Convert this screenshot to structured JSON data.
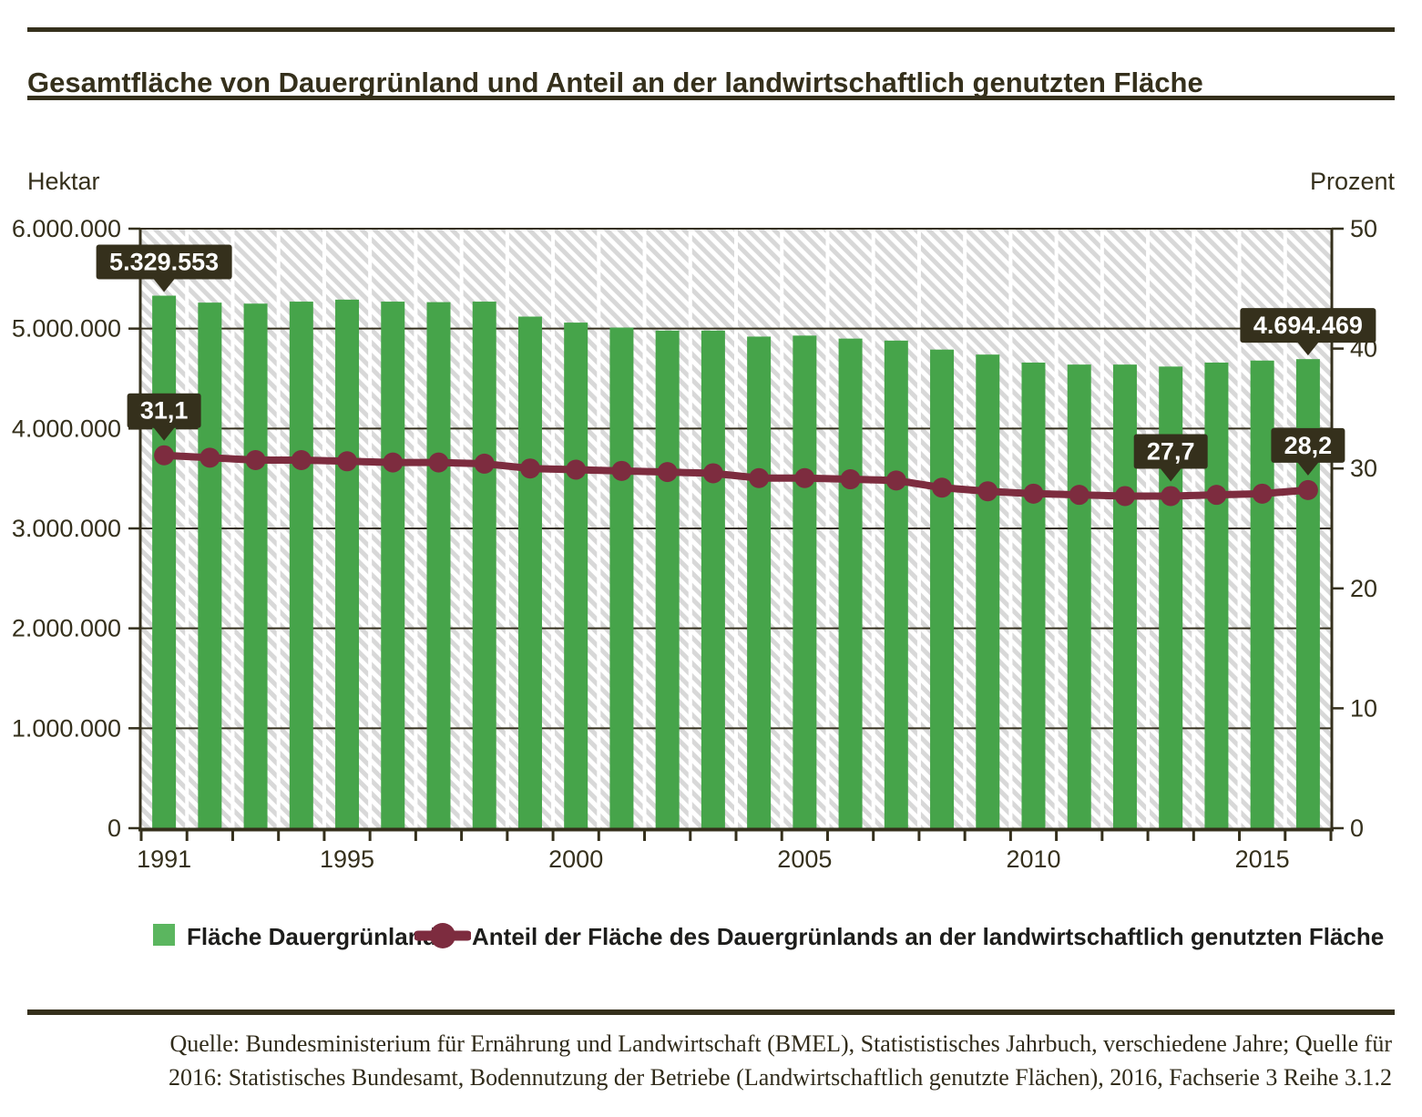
{
  "header": {
    "title": "Gesamtfläche von Dauergrünland und Anteil an der landwirtschaftlich genutzten Fläche"
  },
  "axes": {
    "left_unit": "Hektar",
    "right_unit": "Prozent",
    "left_tick_labels": [
      "0",
      "1.000.000",
      "2.000.000",
      "3.000.000",
      "4.000.000",
      "5.000.000",
      "6.000.000"
    ],
    "right_tick_labels": [
      "0",
      "10",
      "20",
      "30",
      "40",
      "50"
    ],
    "x_tick_labels": [
      {
        "label": "1991",
        "year": 1991
      },
      {
        "label": "1995",
        "year": 1995
      },
      {
        "label": "2000",
        "year": 2000
      },
      {
        "label": "2005",
        "year": 2005
      },
      {
        "label": "2010",
        "year": 2010
      },
      {
        "label": "2015",
        "year": 2015
      }
    ]
  },
  "legend": {
    "items": [
      {
        "label": "Fläche Dauergrünland",
        "marker": "green-square"
      },
      {
        "label": "Anteil der Fläche des Dauergrünlands an der landwirtschaftlich genutzten Fläche",
        "marker": "maroon-line-dot"
      }
    ]
  },
  "source": {
    "line1": "Quelle: Bundesministerium für Ernährung und Landwirtschaft (BMEL), Statististisches Jahrbuch, verschiedene Jahre; Quelle für",
    "line2": "2016: Statistisches Bundesamt, Bodennutzung der Betriebe (Landwirtschaftlich genutzte Flächen), 2016, Fachserie 3 Reihe 3.1.2"
  },
  "colors": {
    "olive": "#35301c",
    "bar_green": "#46a44a",
    "legend_green": "#5bb65f",
    "maroon": "#7d2c3f",
    "hatch_gray": "#d8d8d8",
    "callout_bg": "#35301c",
    "callout_text": "#ffffff"
  },
  "chart_data": {
    "type": "bar+line",
    "categories": [
      1991,
      1992,
      1993,
      1994,
      1995,
      1996,
      1997,
      1998,
      1999,
      2000,
      2001,
      2002,
      2003,
      2004,
      2005,
      2006,
      2007,
      2008,
      2009,
      2010,
      2011,
      2012,
      2013,
      2014,
      2015,
      2016
    ],
    "series": [
      {
        "name": "Fläche Dauergrünland",
        "type": "bar",
        "axis": "left",
        "unit": "Hektar",
        "values": [
          5329553,
          5260000,
          5250000,
          5270000,
          5290000,
          5270000,
          5265000,
          5270000,
          5120000,
          5060000,
          5010000,
          4980000,
          4980000,
          4920000,
          4930000,
          4900000,
          4880000,
          4790000,
          4740000,
          4660000,
          4640000,
          4640000,
          4620000,
          4660000,
          4680000,
          4694469
        ]
      },
      {
        "name": "Anteil der Fläche des Dauergrünlands an der landwirtschaftlich genutzten Fläche",
        "type": "line",
        "axis": "right",
        "unit": "Prozent",
        "values": [
          31.1,
          30.9,
          30.7,
          30.7,
          30.6,
          30.5,
          30.5,
          30.4,
          30.0,
          29.9,
          29.8,
          29.7,
          29.6,
          29.2,
          29.2,
          29.1,
          29.0,
          28.4,
          28.1,
          27.9,
          27.8,
          27.7,
          27.7,
          27.8,
          27.9,
          28.2
        ]
      }
    ],
    "left_axis": {
      "label": "Hektar",
      "min": 0,
      "max": 6000000,
      "grid_step": 1000000
    },
    "right_axis": {
      "label": "Prozent",
      "min": 0,
      "max": 50,
      "tick_step": 10
    },
    "annotations": [
      {
        "label": "5.329.553",
        "year": 1991,
        "attach": "bar"
      },
      {
        "label": "4.694.469",
        "year": 2016,
        "attach": "bar"
      },
      {
        "label": "31,1",
        "year": 1991,
        "attach": "line"
      },
      {
        "label": "27,7",
        "year": 2013,
        "attach": "line"
      },
      {
        "label": "28,2",
        "year": 2016,
        "attach": "line"
      }
    ],
    "grid": true,
    "legend_position": "bottom"
  }
}
